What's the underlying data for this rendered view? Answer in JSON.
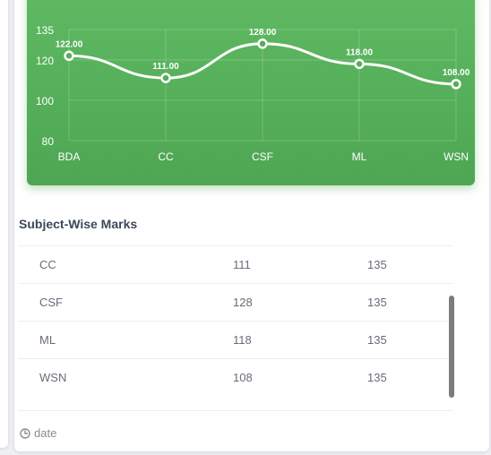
{
  "chart_data": {
    "type": "line",
    "categories": [
      "BDA",
      "CC",
      "CSF",
      "ML",
      "WSN"
    ],
    "values": [
      122,
      111,
      128,
      118,
      108
    ],
    "value_labels": [
      "122.00",
      "111.00",
      "128.00",
      "118.00",
      "108.00"
    ],
    "y_ticks": [
      "135",
      "120",
      "100",
      "80"
    ],
    "ylim": [
      80,
      135
    ],
    "grid": true,
    "line_color": "#ffffff",
    "background_color": "#55ae59"
  },
  "section": {
    "title": "Subject-Wise Marks"
  },
  "table": {
    "rows": [
      {
        "subject": "CC",
        "marks": "111",
        "total": "135"
      },
      {
        "subject": "CSF",
        "marks": "128",
        "total": "135"
      },
      {
        "subject": "ML",
        "marks": "118",
        "total": "135"
      },
      {
        "subject": "WSN",
        "marks": "108",
        "total": "135"
      }
    ]
  },
  "footer": {
    "icon": "clock-icon",
    "label": "date"
  }
}
